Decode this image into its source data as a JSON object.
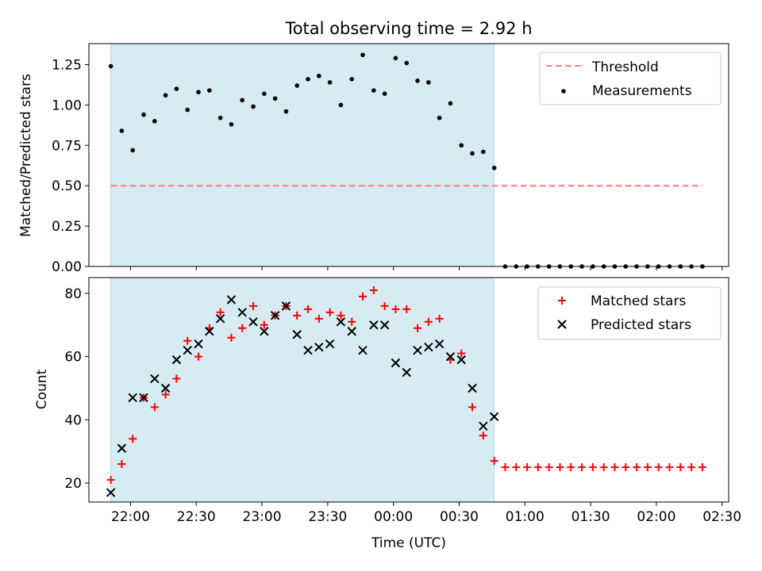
{
  "chart_data": [
    {
      "type": "scatter",
      "title": "Total observing time = 2.92 h",
      "xlabel": "",
      "ylabel": "Matched/Predicted stars",
      "xlim": [
        "21:41",
        "02:33"
      ],
      "ylim": [
        0,
        1.38
      ],
      "yticks": [
        0.0,
        0.25,
        0.5,
        0.75,
        1.0,
        1.25
      ],
      "ytick_labels": [
        "0.00",
        "0.25",
        "0.50",
        "0.75",
        "1.00",
        "1.25"
      ],
      "shaded_interval": [
        "21:51",
        "00:46"
      ],
      "legend": "upper right",
      "series": [
        {
          "name": "Threshold",
          "kind": "dashed-line",
          "color": "#ff7f7f",
          "x": [
            "21:51",
            "02:21"
          ],
          "values": [
            0.5,
            0.5
          ]
        },
        {
          "name": "Measurements",
          "kind": "dot",
          "color": "#000000",
          "x": [
            "21:51",
            "21:56",
            "22:01",
            "22:06",
            "22:11",
            "22:16",
            "22:21",
            "22:26",
            "22:31",
            "22:36",
            "22:41",
            "22:46",
            "22:51",
            "22:56",
            "23:01",
            "23:06",
            "23:11",
            "23:16",
            "23:21",
            "23:26",
            "23:31",
            "23:36",
            "23:41",
            "23:46",
            "23:51",
            "23:56",
            "00:01",
            "00:06",
            "00:11",
            "00:16",
            "00:21",
            "00:26",
            "00:31",
            "00:36",
            "00:41",
            "00:46",
            "00:51",
            "00:56",
            "01:01",
            "01:06",
            "01:11",
            "01:16",
            "01:21",
            "01:26",
            "01:31",
            "01:36",
            "01:41",
            "01:46",
            "01:51",
            "01:56",
            "02:01",
            "02:06",
            "02:11",
            "02:16",
            "02:21"
          ],
          "values": [
            1.24,
            0.84,
            0.72,
            0.94,
            0.9,
            1.06,
            1.1,
            0.97,
            1.08,
            1.09,
            0.92,
            0.88,
            1.03,
            0.99,
            1.07,
            1.04,
            0.96,
            1.12,
            1.16,
            1.18,
            1.14,
            1.0,
            1.16,
            1.31,
            1.09,
            1.07,
            1.29,
            1.26,
            1.15,
            1.14,
            0.92,
            1.01,
            0.75,
            0.7,
            0.71,
            0.61,
            0,
            0,
            0,
            0,
            0,
            0,
            0,
            0,
            0,
            0,
            0,
            0,
            0,
            0,
            0,
            0,
            0,
            0,
            0
          ]
        }
      ]
    },
    {
      "type": "scatter",
      "title": "",
      "xlabel": "Time (UTC)",
      "ylabel": "Count",
      "xlim": [
        "21:41",
        "02:33"
      ],
      "ylim": [
        14,
        85
      ],
      "yticks": [
        20,
        40,
        60,
        80
      ],
      "ytick_labels": [
        "20",
        "40",
        "60",
        "80"
      ],
      "xticks": [
        "22:00",
        "22:30",
        "23:00",
        "23:30",
        "00:00",
        "00:30",
        "01:00",
        "01:30",
        "02:00",
        "02:30"
      ],
      "shaded_interval": [
        "21:51",
        "00:46"
      ],
      "legend": "upper right",
      "series": [
        {
          "name": "Matched stars",
          "kind": "plus",
          "color": "#ff0000",
          "x": [
            "21:51",
            "21:56",
            "22:01",
            "22:06",
            "22:11",
            "22:16",
            "22:21",
            "22:26",
            "22:31",
            "22:36",
            "22:41",
            "22:46",
            "22:51",
            "22:56",
            "23:01",
            "23:06",
            "23:11",
            "23:16",
            "23:21",
            "23:26",
            "23:31",
            "23:36",
            "23:41",
            "23:46",
            "23:51",
            "23:56",
            "00:01",
            "00:06",
            "00:11",
            "00:16",
            "00:21",
            "00:26",
            "00:31",
            "00:36",
            "00:41",
            "00:46",
            "00:51",
            "00:56",
            "01:01",
            "01:06",
            "01:11",
            "01:16",
            "01:21",
            "01:26",
            "01:31",
            "01:36",
            "01:41",
            "01:46",
            "01:51",
            "01:56",
            "02:01",
            "02:06",
            "02:11",
            "02:16",
            "02:21"
          ],
          "values": [
            21,
            26,
            34,
            47,
            44,
            48,
            53,
            65,
            60,
            69,
            74,
            66,
            69,
            76,
            70,
            73,
            76,
            73,
            75,
            72,
            74,
            73,
            71,
            79,
            81,
            76,
            75,
            75,
            69,
            71,
            72,
            59,
            61,
            44,
            35,
            27,
            25,
            25,
            25,
            25,
            25,
            25,
            25,
            25,
            25,
            25,
            25,
            25,
            25,
            25,
            25,
            25,
            25,
            25,
            25
          ]
        },
        {
          "name": "Predicted stars",
          "kind": "x",
          "color": "#000000",
          "x": [
            "21:51",
            "21:56",
            "22:01",
            "22:06",
            "22:11",
            "22:16",
            "22:21",
            "22:26",
            "22:31",
            "22:36",
            "22:41",
            "22:46",
            "22:51",
            "22:56",
            "23:01",
            "23:06",
            "23:11",
            "23:16",
            "23:21",
            "23:26",
            "23:31",
            "23:36",
            "23:41",
            "23:46",
            "23:51",
            "23:56",
            "00:01",
            "00:06",
            "00:11",
            "00:16",
            "00:21",
            "00:26",
            "00:31",
            "00:36",
            "00:41",
            "00:46"
          ],
          "values": [
            17,
            31,
            47,
            47,
            53,
            50,
            59,
            62,
            64,
            68,
            72,
            78,
            74,
            71,
            68,
            73,
            76,
            67,
            62,
            63,
            64,
            71,
            68,
            62,
            70,
            70,
            58,
            55,
            62,
            63,
            64,
            60,
            59,
            50,
            38,
            41
          ]
        }
      ]
    }
  ]
}
